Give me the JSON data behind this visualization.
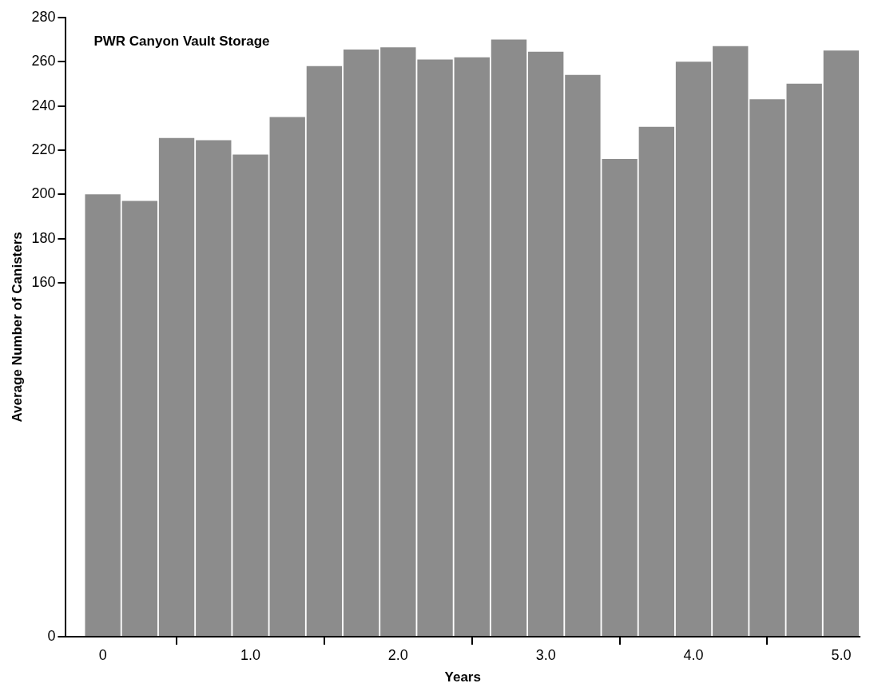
{
  "chart_data": {
    "type": "histogram",
    "title": "PWR Canyon Vault Storage",
    "xlabel": "Years",
    "ylabel": "Average Number of Canisters",
    "bins": [
      -0.125,
      0.125,
      0.375,
      0.625,
      0.875,
      1.125,
      1.375,
      1.625,
      1.875,
      2.125,
      2.375,
      2.625,
      2.875,
      3.125,
      3.375,
      3.625,
      3.875,
      4.125,
      4.375,
      4.625,
      4.875,
      5.125
    ],
    "values": [
      200,
      197,
      225.5,
      224.5,
      218,
      235,
      258,
      265.5,
      266.5,
      261,
      262,
      270,
      264.5,
      254,
      216,
      230.5,
      260,
      267,
      243,
      250,
      265
    ],
    "color": "#8c8c8c",
    "xlim": [
      -0.25,
      5.125
    ],
    "xticks": [
      {
        "value": 0,
        "label": "0"
      },
      {
        "value": 1,
        "label": "1.0"
      },
      {
        "value": 2,
        "label": "2.0"
      },
      {
        "value": 3,
        "label": "3.0"
      },
      {
        "value": 4,
        "label": "4.0"
      },
      {
        "value": 5,
        "label": "5.0"
      }
    ],
    "ylim": [
      0,
      280
    ],
    "yticks": [
      0,
      160,
      180,
      200,
      220,
      240,
      260,
      280
    ],
    "grid": false,
    "legend": false
  }
}
